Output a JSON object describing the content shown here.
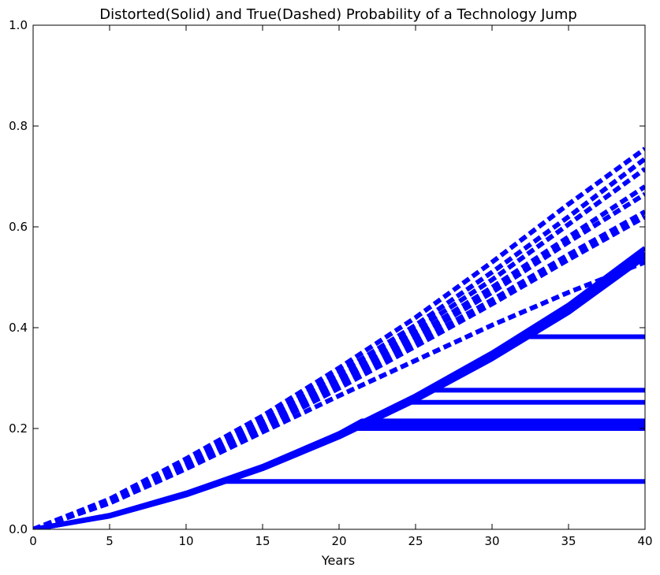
{
  "chart_data": {
    "type": "line",
    "title": "Distorted(Solid) and True(Dashed) Probability of a Technology Jump",
    "xlabel": "Years",
    "ylabel": "",
    "xlim": [
      0,
      40
    ],
    "ylim": [
      0,
      1.0
    ],
    "xticks": [
      0,
      5,
      10,
      15,
      20,
      25,
      30,
      35,
      40
    ],
    "yticks": [
      0.0,
      0.2,
      0.4,
      0.6,
      0.8,
      1.0
    ],
    "xtick_labels": [
      "0",
      "5",
      "10",
      "15",
      "20",
      "25",
      "30",
      "35",
      "40"
    ],
    "ytick_labels": [
      "0.0",
      "0.2",
      "0.4",
      "0.6",
      "0.8",
      "1.0"
    ],
    "grid": false,
    "legend": "none",
    "series_color": "#0000ff",
    "series": [
      {
        "style": "dashed",
        "x": [
          0,
          5,
          10,
          15,
          20,
          25,
          30,
          35,
          40
        ],
        "y": [
          0,
          0.06,
          0.14,
          0.225,
          0.32,
          0.42,
          0.53,
          0.645,
          0.755
        ]
      },
      {
        "style": "dashed",
        "x": [
          0,
          5,
          10,
          15,
          20,
          25,
          30,
          35,
          40
        ],
        "y": [
          0,
          0.058,
          0.135,
          0.218,
          0.31,
          0.405,
          0.51,
          0.62,
          0.735
        ]
      },
      {
        "style": "dashed",
        "x": [
          0,
          5,
          10,
          15,
          20,
          25,
          30,
          35,
          40
        ],
        "y": [
          0,
          0.056,
          0.13,
          0.212,
          0.3,
          0.395,
          0.495,
          0.605,
          0.715
        ]
      },
      {
        "style": "dashed",
        "x": [
          0,
          5,
          10,
          15,
          20,
          25,
          30,
          35,
          40
        ],
        "y": [
          0,
          0.055,
          0.128,
          0.208,
          0.295,
          0.385,
          0.48,
          0.58,
          0.68
        ]
      },
      {
        "style": "dashed",
        "x": [
          0,
          5,
          10,
          15,
          20,
          25,
          30,
          35,
          40
        ],
        "y": [
          0,
          0.054,
          0.126,
          0.205,
          0.29,
          0.378,
          0.47,
          0.57,
          0.665
        ]
      },
      {
        "style": "dashed",
        "x": [
          0,
          5,
          10,
          15,
          20,
          25,
          30,
          35,
          40
        ],
        "y": [
          0,
          0.053,
          0.124,
          0.202,
          0.285,
          0.37,
          0.455,
          0.545,
          0.63
        ]
      },
      {
        "style": "dashed",
        "x": [
          0,
          5,
          10,
          15,
          20,
          25,
          30,
          35,
          40
        ],
        "y": [
          0,
          0.052,
          0.122,
          0.2,
          0.28,
          0.363,
          0.447,
          0.535,
          0.62
        ]
      },
      {
        "style": "dashed",
        "x": [
          0,
          5,
          10,
          15,
          20,
          25,
          30,
          35,
          40
        ],
        "y": [
          0,
          0.052,
          0.12,
          0.193,
          0.265,
          0.335,
          0.405,
          0.47,
          0.53
        ]
      },
      {
        "style": "solid",
        "x": [
          0,
          5,
          10,
          15,
          20,
          25,
          30,
          35,
          40
        ],
        "y": [
          0,
          0.028,
          0.072,
          0.125,
          0.19,
          0.265,
          0.35,
          0.445,
          0.558
        ]
      },
      {
        "style": "solid",
        "x": [
          0,
          5,
          10,
          15,
          20,
          25,
          30,
          35,
          40
        ],
        "y": [
          0,
          0.027,
          0.07,
          0.122,
          0.186,
          0.26,
          0.343,
          0.437,
          0.548
        ]
      },
      {
        "style": "solid",
        "x": [
          0,
          5,
          10,
          15,
          20,
          25,
          30,
          35,
          40
        ],
        "y": [
          0,
          0.026,
          0.068,
          0.12,
          0.183,
          0.256,
          0.338,
          0.43,
          0.54
        ]
      },
      {
        "style": "solid",
        "x": [
          0,
          5,
          10,
          12.5,
          40
        ],
        "y": [
          0,
          0.027,
          0.07,
          0.095,
          0.095
        ]
      },
      {
        "style": "solid",
        "x": [
          0,
          5,
          10,
          15,
          20,
          21,
          40
        ],
        "y": [
          0,
          0.027,
          0.07,
          0.122,
          0.186,
          0.2,
          0.2
        ]
      },
      {
        "style": "solid",
        "x": [
          0,
          5,
          10,
          15,
          20,
          21,
          40
        ],
        "y": [
          0,
          0.027,
          0.07,
          0.122,
          0.186,
          0.205,
          0.205
        ]
      },
      {
        "style": "solid",
        "x": [
          0,
          5,
          10,
          15,
          20,
          21.3,
          40
        ],
        "y": [
          0,
          0.027,
          0.07,
          0.122,
          0.188,
          0.21,
          0.21
        ]
      },
      {
        "style": "solid",
        "x": [
          0,
          5,
          10,
          15,
          20,
          21.5,
          40
        ],
        "y": [
          0,
          0.027,
          0.07,
          0.122,
          0.19,
          0.215,
          0.215
        ]
      },
      {
        "style": "solid",
        "x": [
          0,
          5,
          10,
          15,
          20,
          24.5,
          40
        ],
        "y": [
          0,
          0.027,
          0.07,
          0.122,
          0.188,
          0.252,
          0.252
        ]
      },
      {
        "style": "solid",
        "x": [
          0,
          5,
          10,
          15,
          20,
          25,
          26,
          40
        ],
        "y": [
          0,
          0.027,
          0.07,
          0.122,
          0.188,
          0.263,
          0.276,
          0.276
        ]
      },
      {
        "style": "solid",
        "x": [
          0,
          5,
          10,
          15,
          20,
          25,
          30,
          32,
          40
        ],
        "y": [
          0,
          0.027,
          0.07,
          0.122,
          0.188,
          0.263,
          0.345,
          0.382,
          0.382
        ]
      }
    ]
  }
}
